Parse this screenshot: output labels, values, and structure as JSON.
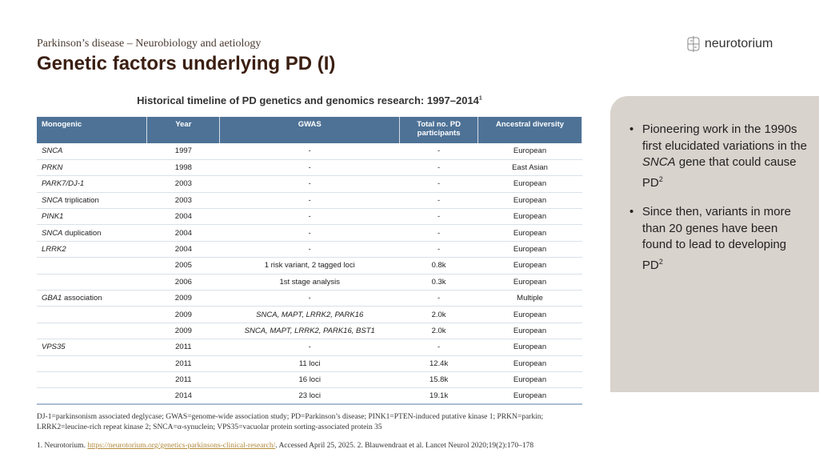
{
  "header": {
    "subtitle": "Parkinson’s disease – Neurobiology and aetiology",
    "title": "Genetic factors underlying PD (I)",
    "logo": "neurotorium"
  },
  "table": {
    "caption": "Historical timeline of PD genetics and genomics research: 1997–2014",
    "caption_sup": "1",
    "columns": [
      "Monogenic",
      "Year",
      "GWAS",
      "Total no. PD participants",
      "Ancestral diversity"
    ],
    "rows": [
      {
        "mono": "SNCA",
        "mono_suffix": "",
        "year": "1997",
        "gwas": "-",
        "total": "-",
        "anc": "European"
      },
      {
        "mono": "PRKN",
        "mono_suffix": "",
        "year": "1998",
        "gwas": "-",
        "total": "-",
        "anc": "East Asian"
      },
      {
        "mono": "PARK7/DJ-1",
        "mono_suffix": "",
        "year": "2003",
        "gwas": "-",
        "total": "-",
        "anc": "European"
      },
      {
        "mono": "SNCA",
        "mono_suffix": " triplication",
        "year": "2003",
        "gwas": "-",
        "total": "-",
        "anc": "European"
      },
      {
        "mono": "PINK1",
        "mono_suffix": "",
        "year": "2004",
        "gwas": "-",
        "total": "-",
        "anc": "European"
      },
      {
        "mono": "SNCA",
        "mono_suffix": " duplication",
        "year": "2004",
        "gwas": "-",
        "total": "-",
        "anc": "European"
      },
      {
        "mono": "LRRK2",
        "mono_suffix": "",
        "year": "2004",
        "gwas": "-",
        "total": "-",
        "anc": "European"
      },
      {
        "mono": "",
        "mono_suffix": "",
        "year": "2005",
        "gwas": "1 risk variant, 2 tagged loci",
        "total": "0.8k",
        "anc": "European"
      },
      {
        "mono": "",
        "mono_suffix": "",
        "year": "2006",
        "gwas": "1st stage analysis",
        "total": "0.3k",
        "anc": "European"
      },
      {
        "mono": "GBA1",
        "mono_suffix": " association",
        "year": "2009",
        "gwas": "-",
        "total": "-",
        "anc": "Multiple"
      },
      {
        "mono": "",
        "mono_suffix": "",
        "year": "2009",
        "gwas": "SNCA, MAPT, LRRK2, PARK16",
        "gwas_italic": true,
        "total": "2.0k",
        "anc": "European"
      },
      {
        "mono": "",
        "mono_suffix": "",
        "year": "2009",
        "gwas": "SNCA, MAPT, LRRK2, PARK16, BST1",
        "gwas_italic": true,
        "total": "2.0k",
        "anc": "European"
      },
      {
        "mono": "VPS35",
        "mono_suffix": "",
        "year": "2011",
        "gwas": "-",
        "total": "-",
        "anc": "European"
      },
      {
        "mono": "",
        "mono_suffix": "",
        "year": "2011",
        "gwas": "11 loci",
        "total": "12.4k",
        "anc": "European"
      },
      {
        "mono": "",
        "mono_suffix": "",
        "year": "2011",
        "gwas": "16 loci",
        "total": "15.8k",
        "anc": "European"
      },
      {
        "mono": "",
        "mono_suffix": "",
        "year": "2014",
        "gwas": "23 loci",
        "total": "19.1k",
        "anc": "European"
      }
    ]
  },
  "panel": {
    "bullets": [
      "Pioneering work in the 1990s first elucidated variations in the SNCA gene that could cause PD²",
      "Since then, variants in more than 20 genes have been found to lead to developing PD²"
    ]
  },
  "footnote": "DJ-1=parkinsonism associated deglycase; GWAS=genome-wide association study; PD=Parkinson’s disease; PINK1=PTEN-induced putative kinase 1; PRKN=parkin; LRRK2=leucine-rich repeat kinase 2; SNCA=α-synuclein; VPS35=vacuolar protein sorting-associated protein 35",
  "refs": {
    "pre": "1. Neurotorium. ",
    "link": "https://neurotorium.org/genetics-parkinsons-clinical-research/",
    "post": ". Accessed April 25, 2025. 2. Blauwendraat et al. Lancet Neurol 2020;19(2):170–178"
  },
  "colors": {
    "header": "#4e7296",
    "panel": "#d9d3cd",
    "title": "#3b1f12"
  }
}
